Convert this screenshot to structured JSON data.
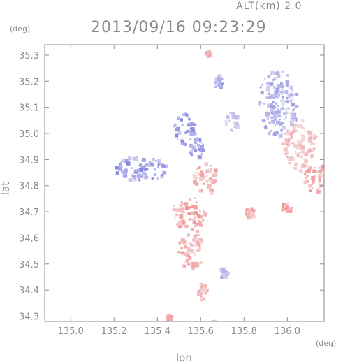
{
  "header": {
    "altitude_label": "ALT(km)  2.0",
    "timestamp": "2013/09/16 09:23:29"
  },
  "chart_data": {
    "type": "heatmap",
    "title": "2013/09/16 09:23:29",
    "xlabel": "lon",
    "ylabel": "lat",
    "xunit": "(deg)",
    "yunit": "(deg)",
    "xlim": [
      134.88,
      136.17
    ],
    "ylim": [
      34.28,
      35.34
    ],
    "xticks": [
      135.0,
      135.2,
      135.4,
      135.6,
      135.8,
      136.0
    ],
    "yticks": [
      34.3,
      34.4,
      34.5,
      34.6,
      34.7,
      34.8,
      34.9,
      35.0,
      35.1,
      35.2,
      35.3
    ],
    "xtick_labels": [
      "135.0",
      "135.2",
      "135.4",
      "135.6",
      "135.8",
      "136.0"
    ],
    "ytick_labels": [
      "34.3",
      "34.4",
      "34.5",
      "34.6",
      "34.7",
      "34.8",
      "34.9",
      "35.0",
      "35.1",
      "35.2",
      "35.3"
    ],
    "colors": {
      "negative": "#6f6fe0",
      "positive": "#ef6f6f",
      "neutral": "#f4f0f4",
      "axis": "#8a8a8a"
    },
    "regions": [
      {
        "lon": 135.95,
        "lat": 35.12,
        "rlon": 0.09,
        "rlat": 0.13,
        "sign": -1,
        "intensity": 0.45
      },
      {
        "lon": 136.05,
        "lat": 34.96,
        "rlon": 0.08,
        "rlat": 0.1,
        "sign": 1,
        "intensity": 0.35
      },
      {
        "lon": 136.12,
        "lat": 34.84,
        "rlon": 0.05,
        "rlat": 0.06,
        "sign": 1,
        "intensity": 0.5
      },
      {
        "lon": 135.52,
        "lat": 35.02,
        "rlon": 0.05,
        "rlat": 0.06,
        "sign": -1,
        "intensity": 0.6
      },
      {
        "lon": 135.58,
        "lat": 34.95,
        "rlon": 0.04,
        "rlat": 0.04,
        "sign": -1,
        "intensity": 0.55
      },
      {
        "lon": 135.32,
        "lat": 34.87,
        "rlon": 0.12,
        "rlat": 0.05,
        "sign": -1,
        "intensity": 0.6
      },
      {
        "lon": 135.68,
        "lat": 35.2,
        "rlon": 0.02,
        "rlat": 0.03,
        "sign": -1,
        "intensity": 0.5
      },
      {
        "lon": 135.74,
        "lat": 35.05,
        "rlon": 0.03,
        "rlat": 0.04,
        "sign": -1,
        "intensity": 0.35
      },
      {
        "lon": 135.62,
        "lat": 34.83,
        "rlon": 0.06,
        "rlat": 0.06,
        "sign": 1,
        "intensity": 0.45
      },
      {
        "lon": 135.54,
        "lat": 34.7,
        "rlon": 0.08,
        "rlat": 0.06,
        "sign": 1,
        "intensity": 0.55
      },
      {
        "lon": 135.55,
        "lat": 34.56,
        "rlon": 0.06,
        "rlat": 0.08,
        "sign": 1,
        "intensity": 0.45
      },
      {
        "lon": 135.6,
        "lat": 34.4,
        "rlon": 0.02,
        "rlat": 0.04,
        "sign": 1,
        "intensity": 0.4
      },
      {
        "lon": 135.99,
        "lat": 34.72,
        "rlon": 0.02,
        "rlat": 0.02,
        "sign": 1,
        "intensity": 0.6
      },
      {
        "lon": 135.63,
        "lat": 35.31,
        "rlon": 0.01,
        "rlat": 0.01,
        "sign": 1,
        "intensity": 0.6
      },
      {
        "lon": 135.45,
        "lat": 34.3,
        "rlon": 0.01,
        "rlat": 0.01,
        "sign": 1,
        "intensity": 0.6
      },
      {
        "lon": 135.66,
        "lat": 34.28,
        "rlon": 0.02,
        "rlat": 0.01,
        "sign": 1,
        "intensity": 0.45
      },
      {
        "lon": 135.82,
        "lat": 34.7,
        "rlon": 0.02,
        "rlat": 0.02,
        "sign": 1,
        "intensity": 0.5
      },
      {
        "lon": 135.7,
        "lat": 34.47,
        "rlon": 0.02,
        "rlat": 0.02,
        "sign": -1,
        "intensity": 0.4
      }
    ]
  }
}
